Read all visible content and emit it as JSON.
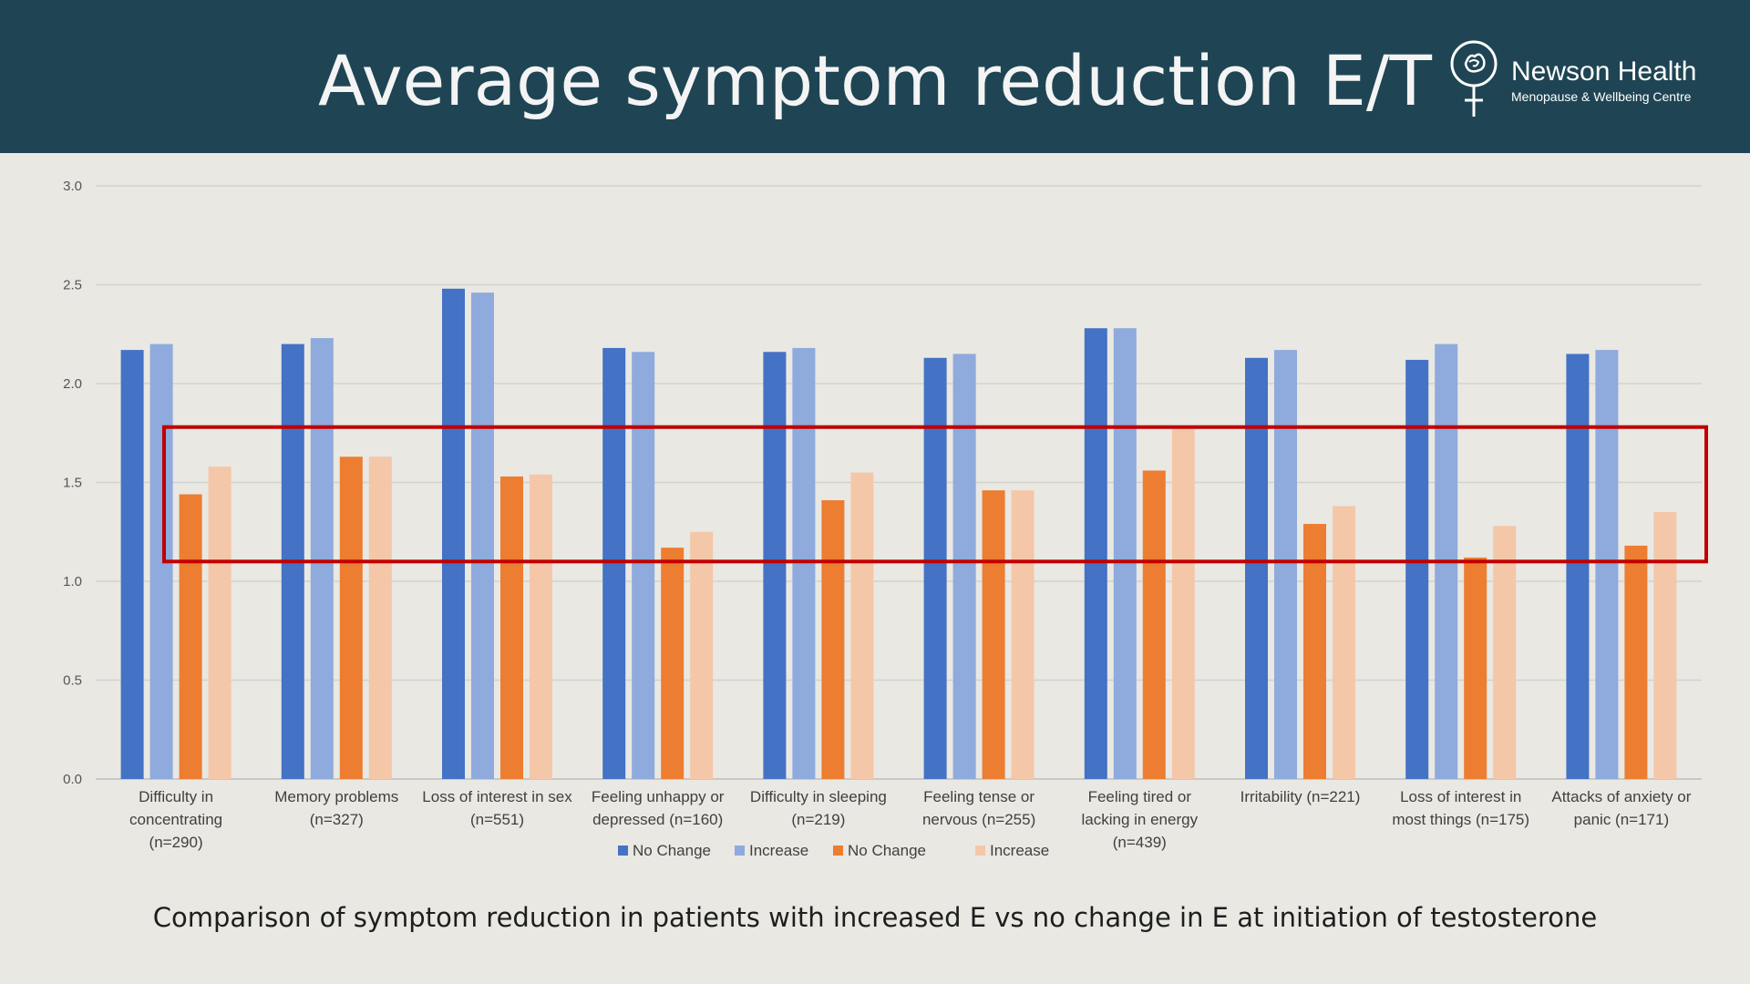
{
  "header": {
    "title": "Average symptom reduction E/T",
    "logo_name": "Newson Health",
    "logo_subtitle": "Menopause & Wellbeing Centre"
  },
  "caption": "Comparison of symptom reduction in patients with increased E vs no change in E at initiation of testosterone",
  "colors": {
    "header_bg": "#1f4554",
    "dark_blue": "#4472c4",
    "light_blue": "#8faadc",
    "dark_orange": "#ed7d31",
    "light_orange": "#f4c7a8",
    "highlight_box": "#c00000"
  },
  "chart_data": {
    "type": "bar",
    "ylim": [
      0,
      3
    ],
    "yticks": [
      "0.0",
      "0.5",
      "1.0",
      "1.5",
      "2.0",
      "2.5",
      "3.0"
    ],
    "categories": [
      [
        "Difficulty in",
        "concentrating",
        "(n=290)"
      ],
      [
        "Memory problems",
        "(n=327)"
      ],
      [
        "Loss of interest in sex",
        "(n=551)"
      ],
      [
        "Feeling unhappy or",
        "depressed (n=160)"
      ],
      [
        "Difficulty in sleeping",
        "(n=219)"
      ],
      [
        "Feeling tense or",
        "nervous (n=255)"
      ],
      [
        "Feeling tired or",
        "lacking in energy",
        "(n=439)"
      ],
      [
        "Irritability (n=221)"
      ],
      [
        "Loss of interest in",
        "most things (n=175)"
      ],
      [
        "Attacks of anxiety or",
        "panic (n=171)"
      ]
    ],
    "series": [
      {
        "name": "No Change",
        "color": "#4472c4",
        "values": [
          2.17,
          2.2,
          2.48,
          2.18,
          2.16,
          2.13,
          2.28,
          2.13,
          2.12,
          2.15
        ]
      },
      {
        "name": "Increase",
        "color": "#8faadc",
        "values": [
          2.2,
          2.23,
          2.46,
          2.16,
          2.18,
          2.15,
          2.28,
          2.17,
          2.2,
          2.17
        ]
      },
      {
        "name": "No Change",
        "color": "#ed7d31",
        "values": [
          1.44,
          1.63,
          1.53,
          1.17,
          1.41,
          1.46,
          1.56,
          1.29,
          1.12,
          1.18
        ]
      },
      {
        "name": "Increase",
        "color": "#f4c7a8",
        "values": [
          1.58,
          1.63,
          1.54,
          1.25,
          1.55,
          1.46,
          1.77,
          1.38,
          1.28,
          1.35
        ]
      }
    ],
    "highlight_range": [
      1.1,
      1.78
    ],
    "legend": "bottom"
  }
}
